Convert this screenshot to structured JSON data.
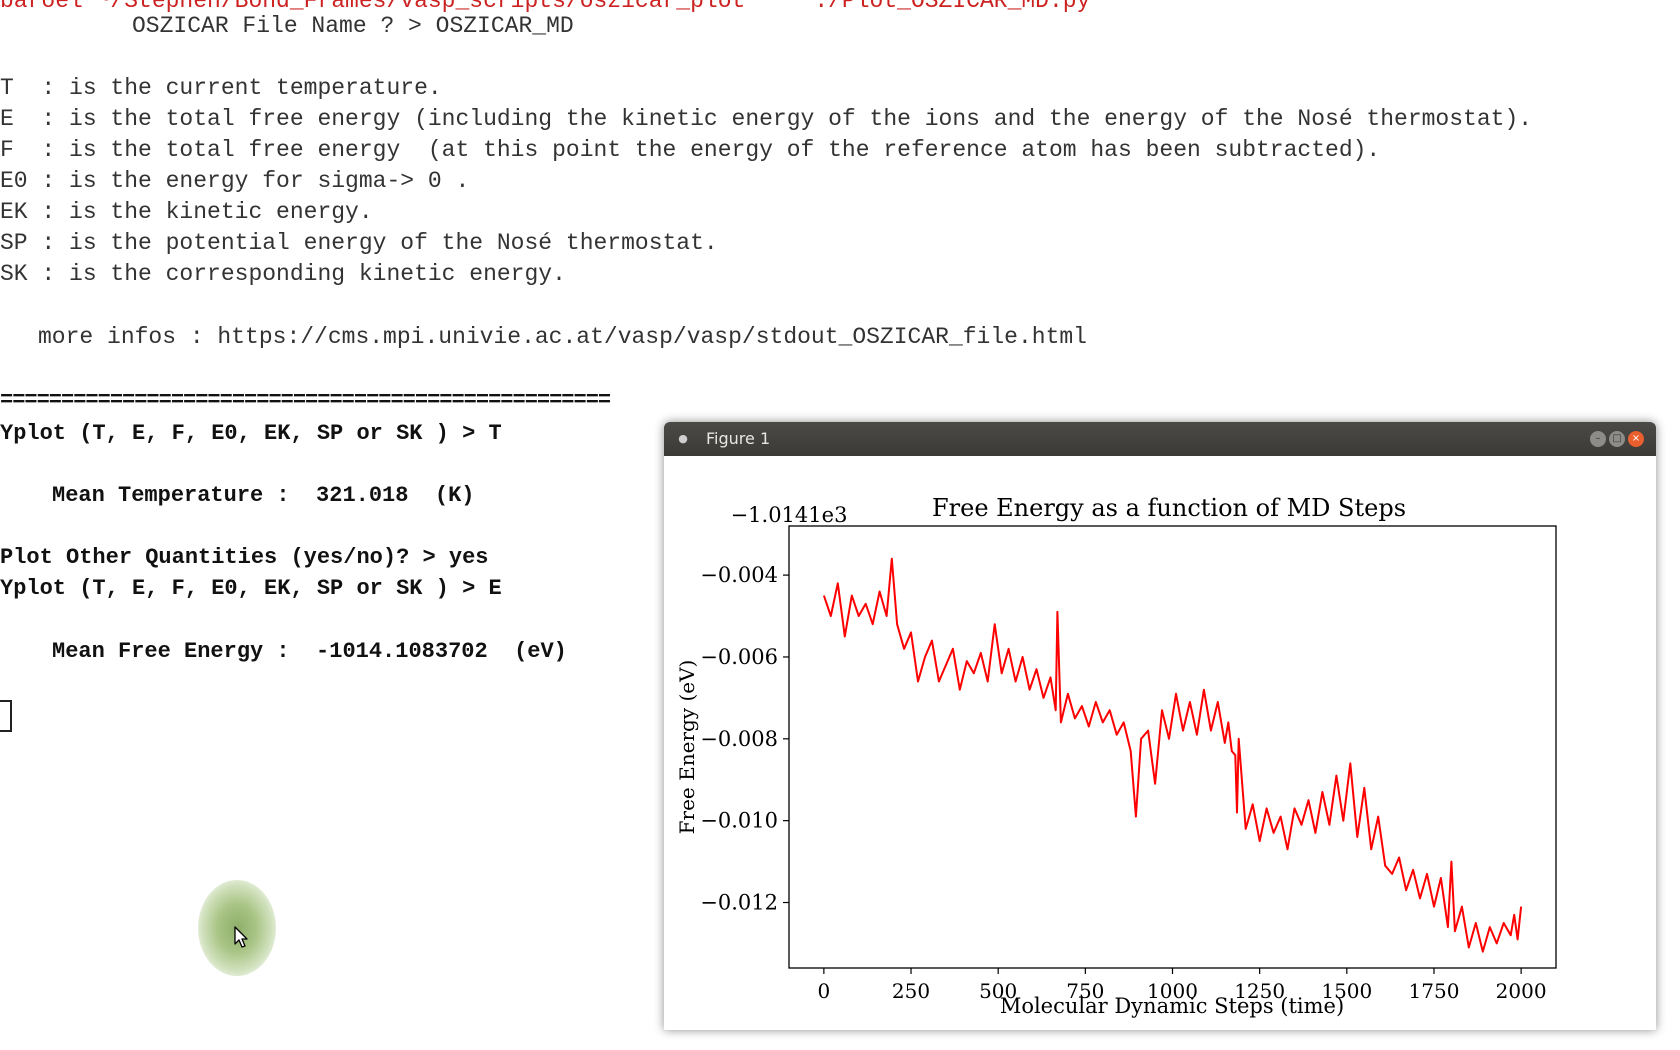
{
  "terminal": {
    "top_line": "OSZICAR File Name ? > OSZICAR_MD",
    "legend_lines": [
      "T  : is the current temperature.",
      "E  : is the total free energy (including the kinetic energy of the ions and the energy of the Nosé thermostat).",
      "F  : is the total free energy  (at this point the energy of the reference atom has been subtracted).",
      "E0 : is the energy for sigma-> 0 .",
      "EK : is the kinetic energy.",
      "SP : is the potential energy of the Nosé thermostat.",
      "SK : is the corresponding kinetic energy."
    ],
    "more_infos": "more infos : https://cms.mpi.univie.ac.at/vasp/vasp/stdout_OSZICAR_file.html",
    "separator": "==================================================",
    "prompt_yplot_1": "Yplot (T, E, F, E0, EK, SP or SK ) > T",
    "mean_temperature": "Mean Temperature :  321.018  (K)",
    "plot_other": "Plot Other Quantities (yes/no)? > yes",
    "prompt_yplot_2": "Yplot (T, E, F, E0, EK, SP or SK ) > E",
    "mean_free_energy": "Mean Free Energy :  -1014.1083702  (eV)"
  },
  "figure_window": {
    "title": "Figure 1"
  },
  "chart_data": {
    "type": "line",
    "title": "Free Energy as a function of MD Steps",
    "xlabel": "Molecular Dynamic Steps  (time)",
    "ylabel": "Free Energy  (eV)",
    "offset_label": "−1.0141e3",
    "xlim": [
      -100,
      2100
    ],
    "ylim": [
      -0.0136,
      -0.0028
    ],
    "x_ticks": [
      0,
      250,
      500,
      750,
      1000,
      1250,
      1500,
      1750,
      2000
    ],
    "x_tick_labels": [
      "0",
      "250",
      "500",
      "750",
      "1000",
      "1250",
      "1500",
      "1750",
      "2000"
    ],
    "y_ticks": [
      -0.004,
      -0.006,
      -0.008,
      -0.01,
      -0.012
    ],
    "y_tick_labels": [
      "−0.004",
      "−0.006",
      "−0.008",
      "−0.010",
      "−0.012"
    ],
    "grid": false,
    "series": [
      {
        "color": "#ff0000",
        "x": [
          0,
          20,
          40,
          60,
          80,
          100,
          120,
          140,
          160,
          180,
          195,
          210,
          230,
          250,
          270,
          290,
          310,
          330,
          350,
          370,
          390,
          410,
          430,
          450,
          470,
          490,
          510,
          530,
          550,
          570,
          590,
          610,
          630,
          650,
          665,
          670,
          680,
          700,
          720,
          740,
          760,
          780,
          800,
          820,
          840,
          860,
          880,
          895,
          910,
          930,
          950,
          970,
          990,
          1010,
          1030,
          1050,
          1070,
          1090,
          1110,
          1130,
          1150,
          1160,
          1170,
          1180,
          1185,
          1190,
          1210,
          1230,
          1250,
          1270,
          1290,
          1310,
          1330,
          1350,
          1370,
          1390,
          1410,
          1430,
          1450,
          1470,
          1490,
          1510,
          1530,
          1550,
          1570,
          1590,
          1610,
          1630,
          1650,
          1670,
          1690,
          1710,
          1730,
          1750,
          1770,
          1790,
          1800,
          1810,
          1830,
          1850,
          1870,
          1890,
          1910,
          1930,
          1950,
          1970,
          1980,
          1990,
          2000
        ],
        "y": [
          -0.0045,
          -0.005,
          -0.0042,
          -0.0055,
          -0.0045,
          -0.005,
          -0.0047,
          -0.0052,
          -0.0044,
          -0.005,
          -0.0036,
          -0.0052,
          -0.0058,
          -0.0054,
          -0.0066,
          -0.006,
          -0.0056,
          -0.0066,
          -0.0062,
          -0.0058,
          -0.0068,
          -0.0061,
          -0.0064,
          -0.0059,
          -0.0066,
          -0.0052,
          -0.0064,
          -0.0058,
          -0.0066,
          -0.006,
          -0.0068,
          -0.0063,
          -0.007,
          -0.0065,
          -0.0073,
          -0.0049,
          -0.0076,
          -0.0069,
          -0.0075,
          -0.0072,
          -0.0077,
          -0.0071,
          -0.0076,
          -0.0073,
          -0.0079,
          -0.0076,
          -0.0083,
          -0.0099,
          -0.008,
          -0.0078,
          -0.0091,
          -0.0073,
          -0.008,
          -0.0069,
          -0.0078,
          -0.0071,
          -0.0079,
          -0.0068,
          -0.0078,
          -0.0071,
          -0.0081,
          -0.0076,
          -0.0083,
          -0.0084,
          -0.0098,
          -0.008,
          -0.0102,
          -0.0096,
          -0.0105,
          -0.0097,
          -0.0103,
          -0.0099,
          -0.0107,
          -0.0097,
          -0.0101,
          -0.0095,
          -0.0103,
          -0.0093,
          -0.0101,
          -0.0089,
          -0.01,
          -0.0086,
          -0.0104,
          -0.0092,
          -0.0107,
          -0.0099,
          -0.0111,
          -0.0113,
          -0.0109,
          -0.0117,
          -0.0112,
          -0.0119,
          -0.0113,
          -0.0121,
          -0.0114,
          -0.0126,
          -0.011,
          -0.0127,
          -0.0121,
          -0.0131,
          -0.0125,
          -0.0132,
          -0.0126,
          -0.013,
          -0.0125,
          -0.0128,
          -0.0123,
          -0.0129,
          -0.0121
        ]
      }
    ]
  }
}
